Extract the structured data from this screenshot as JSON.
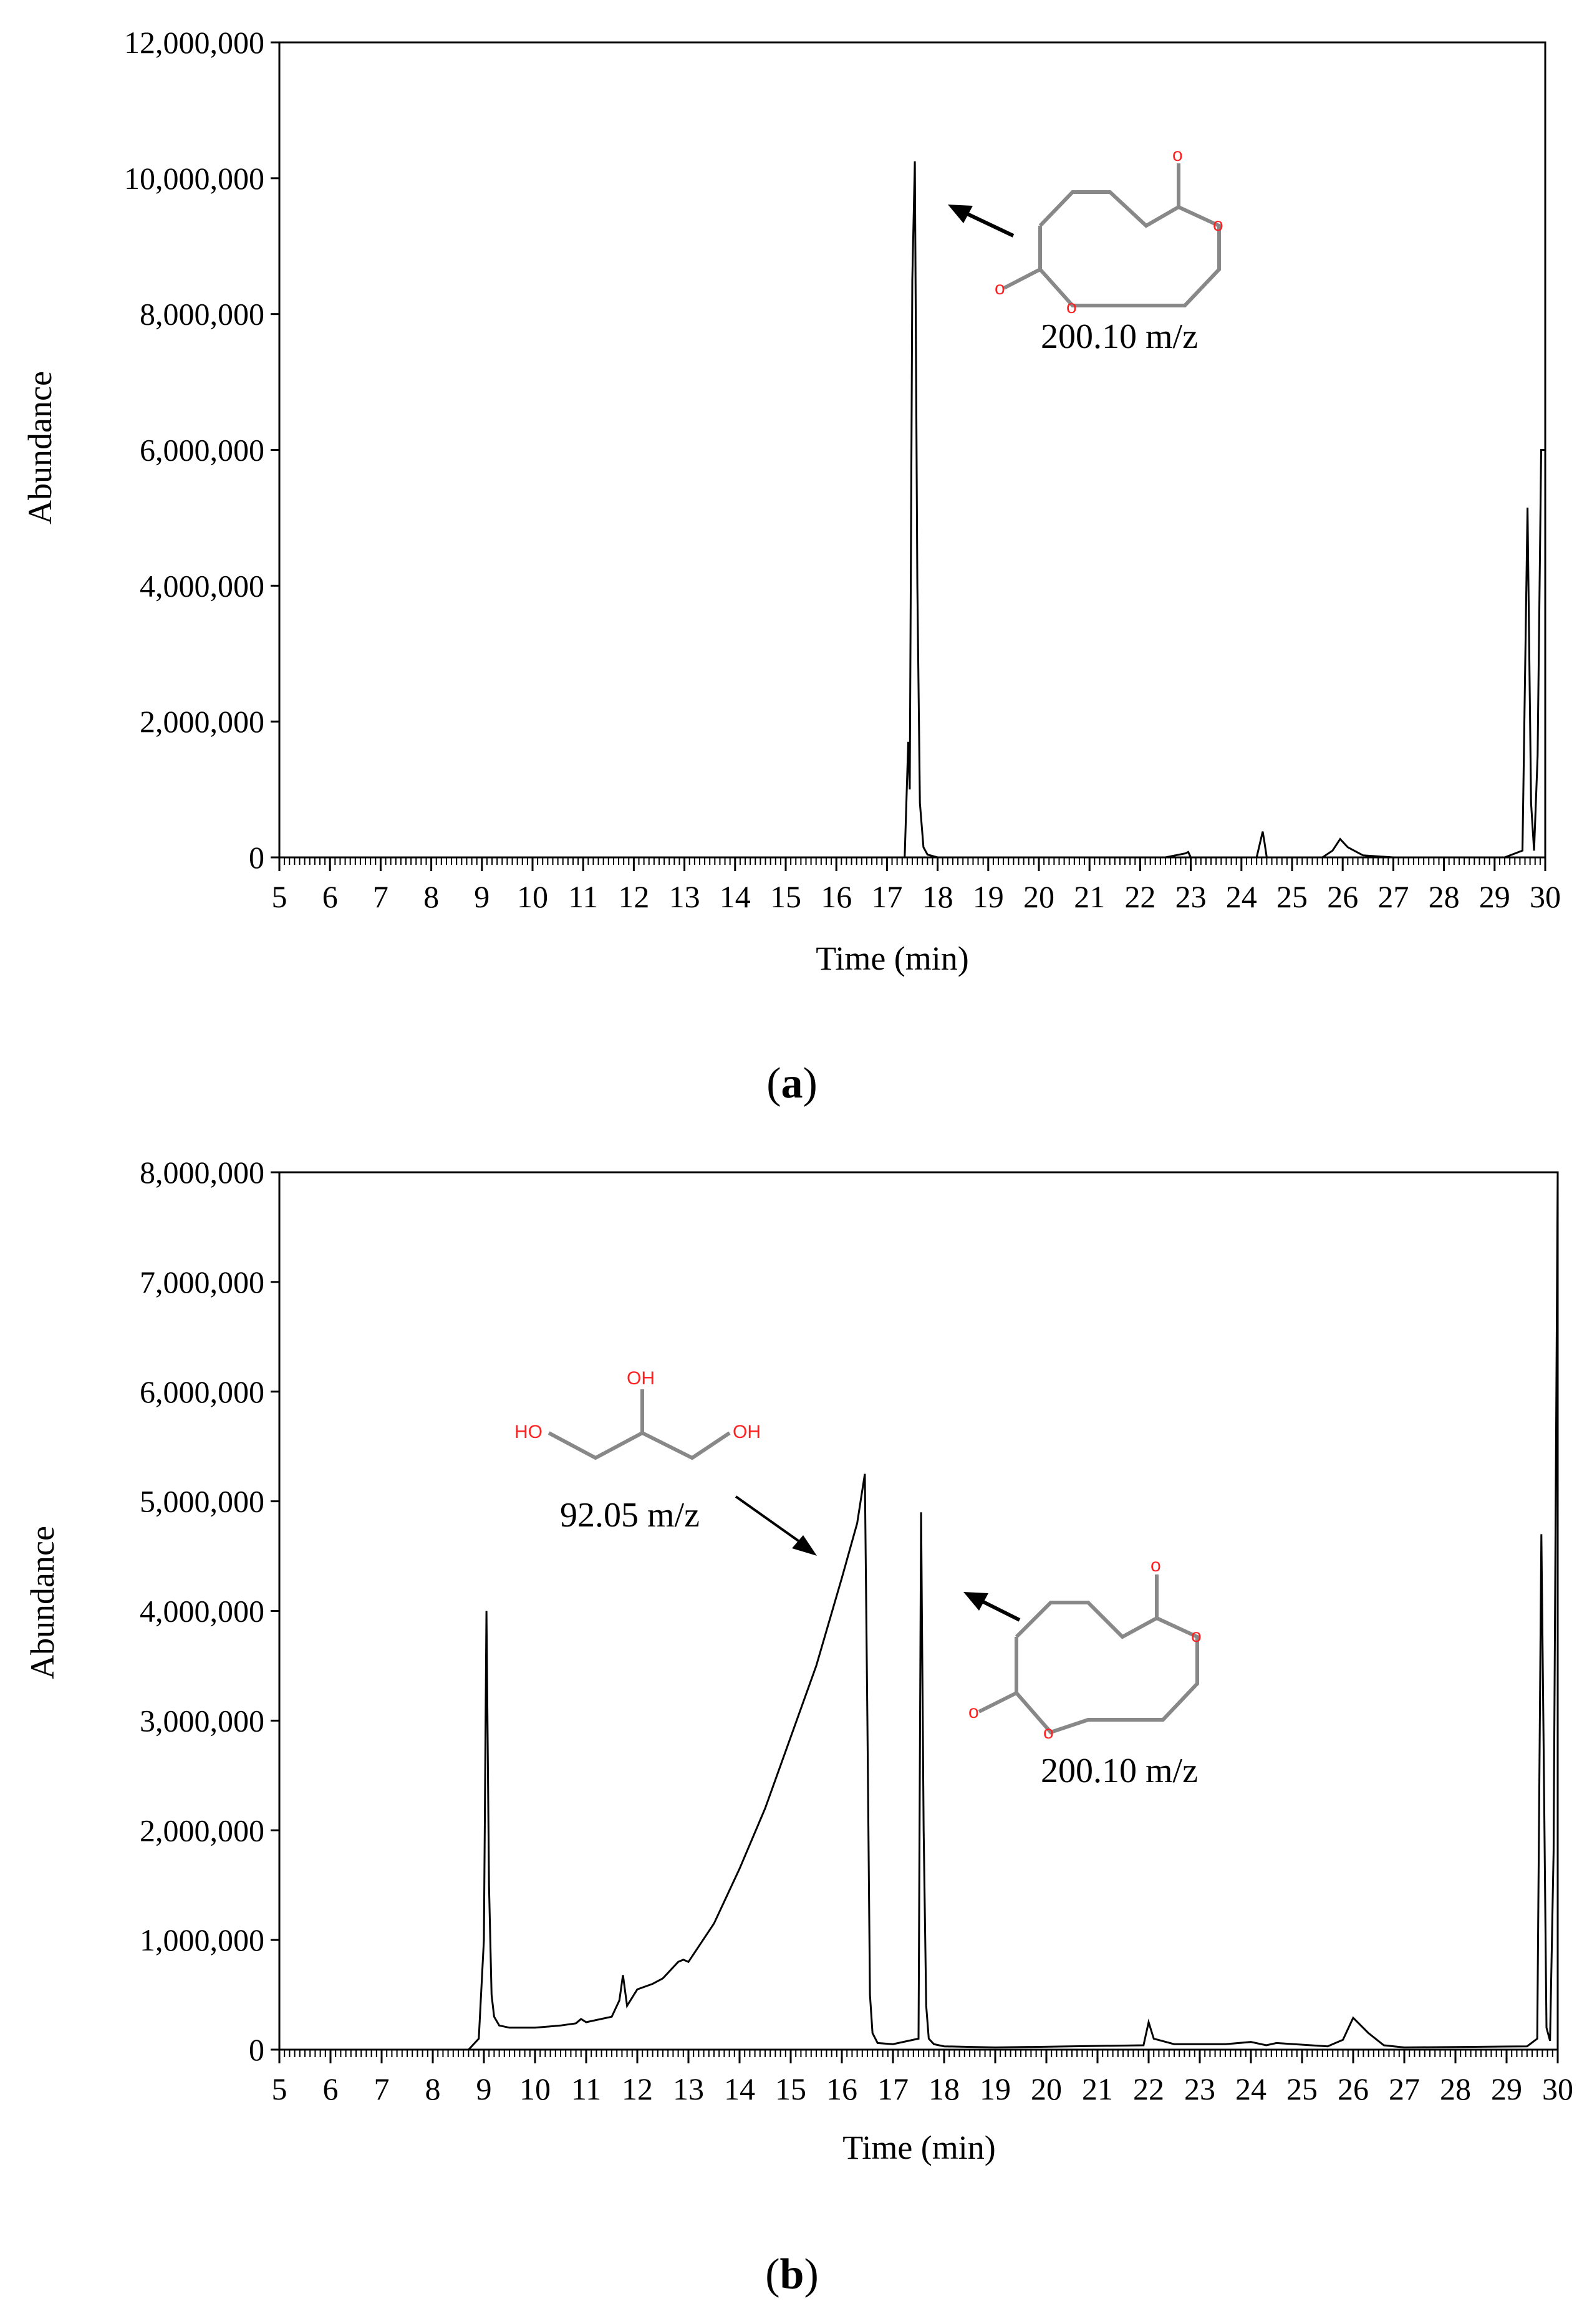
{
  "chart_data": [
    {
      "type": "line",
      "panel_label": "a",
      "xlabel": "Time (min)",
      "ylabel": "Abundance",
      "xlim": [
        5,
        30
      ],
      "ylim": [
        0,
        12000000
      ],
      "xticks": [
        "5",
        "6",
        "7",
        "8",
        "9",
        "10",
        "11",
        "12",
        "13",
        "14",
        "15",
        "16",
        "17",
        "18",
        "19",
        "20",
        "21",
        "22",
        "23",
        "24",
        "25",
        "26",
        "27",
        "28",
        "29",
        "30"
      ],
      "yticks": [
        "0",
        "2,000,000",
        "4,000,000",
        "6,000,000",
        "8,000,000",
        "10,000,000",
        "12,000,000"
      ],
      "annotation": "200.10 m/z",
      "series": [
        {
          "x": [
            5.0,
            10.0,
            15.0,
            17.35,
            17.42,
            17.45,
            17.5,
            17.55,
            17.6,
            17.65,
            17.72,
            17.8,
            18.0,
            20.0,
            22.5,
            22.9,
            22.95,
            23.0,
            24.3,
            24.42,
            24.45,
            24.5,
            25.6,
            25.8,
            25.95,
            26.1,
            26.4,
            27.0,
            29.2,
            29.55,
            29.65,
            29.72,
            29.78,
            29.85,
            29.92,
            30.0
          ],
          "y": [
            0,
            0,
            0,
            0,
            1700000,
            1000000,
            8500000,
            10250000,
            4000000,
            800000,
            150000,
            40000,
            0,
            0,
            0,
            60000,
            80000,
            0,
            0,
            380000,
            250000,
            0,
            0,
            100000,
            270000,
            150000,
            30000,
            0,
            0,
            100000,
            5150000,
            800000,
            100000,
            1500000,
            6000000,
            6000000
          ]
        }
      ]
    },
    {
      "type": "line",
      "panel_label": "b",
      "xlabel": "Time (min)",
      "ylabel": "Abundance",
      "xlim": [
        5,
        30
      ],
      "ylim": [
        0,
        8000000
      ],
      "xticks": [
        "5",
        "6",
        "7",
        "8",
        "9",
        "10",
        "11",
        "12",
        "13",
        "14",
        "15",
        "16",
        "17",
        "18",
        "19",
        "20",
        "21",
        "22",
        "23",
        "24",
        "25",
        "26",
        "27",
        "28",
        "29",
        "30"
      ],
      "yticks": [
        "0",
        "1,000,000",
        "2,000,000",
        "3,000,000",
        "4,000,000",
        "5,000,000",
        "6,000,000",
        "7,000,000",
        "8,000,000"
      ],
      "annotations": [
        "92.05 m/z",
        "200.10 m/z"
      ],
      "series": [
        {
          "x": [
            5.0,
            8.0,
            8.7,
            8.9,
            9.0,
            9.05,
            9.1,
            9.15,
            9.2,
            9.3,
            9.5,
            10.0,
            10.5,
            10.8,
            10.9,
            11.0,
            11.5,
            11.65,
            11.72,
            11.8,
            12.0,
            12.3,
            12.5,
            12.8,
            12.9,
            13.0,
            13.5,
            14.0,
            14.5,
            15.0,
            15.5,
            16.0,
            16.3,
            16.45,
            16.5,
            16.55,
            16.6,
            16.7,
            17.0,
            17.5,
            17.55,
            17.6,
            17.65,
            17.7,
            17.8,
            18.0,
            19.0,
            21.9,
            22.0,
            22.1,
            22.5,
            23.5,
            24.0,
            24.3,
            24.5,
            25.5,
            25.8,
            26.0,
            26.3,
            26.6,
            27.0,
            29.4,
            29.6,
            29.68,
            29.72,
            29.78,
            29.85,
            29.92,
            30.0
          ],
          "y": [
            0,
            0,
            0,
            100000,
            1000000,
            4000000,
            1500000,
            500000,
            300000,
            220000,
            200000,
            200000,
            220000,
            240000,
            280000,
            250000,
            300000,
            450000,
            680000,
            400000,
            550000,
            600000,
            650000,
            800000,
            820000,
            800000,
            1150000,
            1650000,
            2200000,
            2850000,
            3500000,
            4300000,
            4800000,
            5250000,
            3000000,
            500000,
            150000,
            60000,
            50000,
            100000,
            4900000,
            2000000,
            400000,
            100000,
            50000,
            30000,
            20000,
            40000,
            250000,
            100000,
            50000,
            50000,
            70000,
            40000,
            60000,
            30000,
            90000,
            290000,
            150000,
            40000,
            20000,
            30000,
            100000,
            4700000,
            3000000,
            200000,
            80000,
            1800000,
            8000000
          ]
        }
      ]
    }
  ]
}
